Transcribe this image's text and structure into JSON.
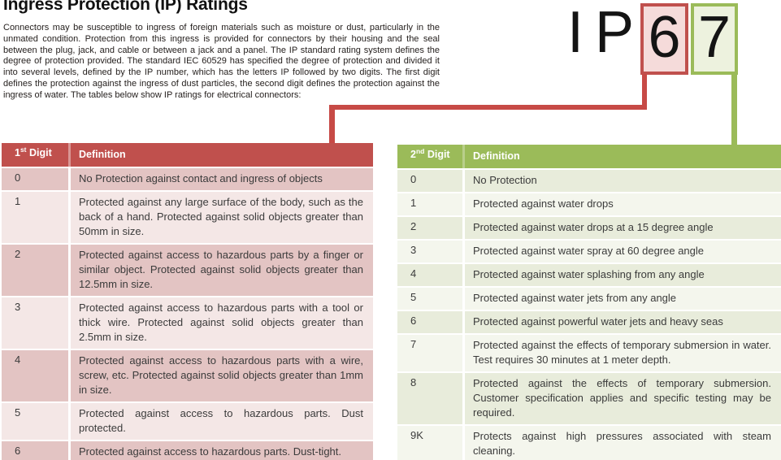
{
  "page": {
    "title": "Ingress Protection (IP) Ratings",
    "intro": "Connectors may be susceptible to ingress of foreign materials such as moisture or dust, particularly in the unmated condition. Protection from this ingress is provided for connectors by their housing and the seal between the plug, jack, and cable or between a jack and a panel. The IP standard rating system defines the degree of protection provided. The standard IEC 60529 has specified the degree of protection and divided it into several levels, defined by the IP number, which has the letters IP followed by two digits. The first digit defines the protection against the ingress of dust particles, the second digit defines the protection against the ingress of water. The tables below show IP ratings for electrical connectors:"
  },
  "ip_graphic": {
    "prefix": "IP",
    "digit1": "6",
    "digit2": "7"
  },
  "colors": {
    "header_red": "#c0504d",
    "divider_red_header": "#d99694",
    "band_red_dark": "#e3c4c3",
    "band_red_light": "#f4e7e6",
    "box6_fill": "#f5dbda",
    "line_red": "#c74a46",
    "header_green": "#9bbb59",
    "divider_green_header": "#b9cf8b",
    "band_green_dark": "#e8ecdb",
    "band_green_light": "#f4f6ed",
    "box7_fill": "#edf2de",
    "line_green": "#9bbb59"
  },
  "first_digit_table": {
    "header_digit": {
      "num": "1",
      "sup": "st",
      "rest": " Digit"
    },
    "header_definition": "Definition",
    "rows": [
      {
        "digit": "0",
        "definition": "No Protection against contact and ingress of objects"
      },
      {
        "digit": "1",
        "definition": "Protected against any large surface of the body, such as the back of a hand. Protected against solid objects greater than 50mm in size."
      },
      {
        "digit": "2",
        "definition": "Protected against access to hazardous parts by a finger or similar object. Protected against solid objects greater than 12.5mm in size."
      },
      {
        "digit": "3",
        "definition": "Protected against access to hazardous parts with a tool or thick wire. Protected against solid objects greater than 2.5mm in size."
      },
      {
        "digit": "4",
        "definition": "Protected against access to hazardous parts with a wire, screw, etc. Protected against solid objects greater than 1mm in size."
      },
      {
        "digit": "5",
        "definition": "Protected against access to hazardous parts. Dust protected."
      },
      {
        "digit": "6",
        "definition": "Protected against access to hazardous parts. Dust-tight."
      }
    ]
  },
  "second_digit_table": {
    "header_digit": {
      "num": "2",
      "sup": "nd",
      "rest": " Digit"
    },
    "header_definition": "Definition",
    "rows": [
      {
        "digit": "0",
        "definition": "No Protection"
      },
      {
        "digit": "1",
        "definition": "Protected against water drops"
      },
      {
        "digit": "2",
        "definition": "Protected against water drops at a 15 degree angle"
      },
      {
        "digit": "3",
        "definition": "Protected against water spray at 60 degree angle"
      },
      {
        "digit": "4",
        "definition": "Protected against water splashing from any angle"
      },
      {
        "digit": "5",
        "definition": "Protected against water jets from any angle"
      },
      {
        "digit": "6",
        "definition": "Protected against powerful water jets and heavy seas"
      },
      {
        "digit": "7",
        "definition": "Protected against the effects of temporary submersion in water. Test requires 30 minutes at 1 meter depth."
      },
      {
        "digit": "8",
        "definition": "Protected against the effects of temporary submersion. Customer specification applies and specific testing may be required."
      },
      {
        "digit": "9K",
        "definition": "Protects against high pressures associated with steam cleaning."
      }
    ]
  }
}
